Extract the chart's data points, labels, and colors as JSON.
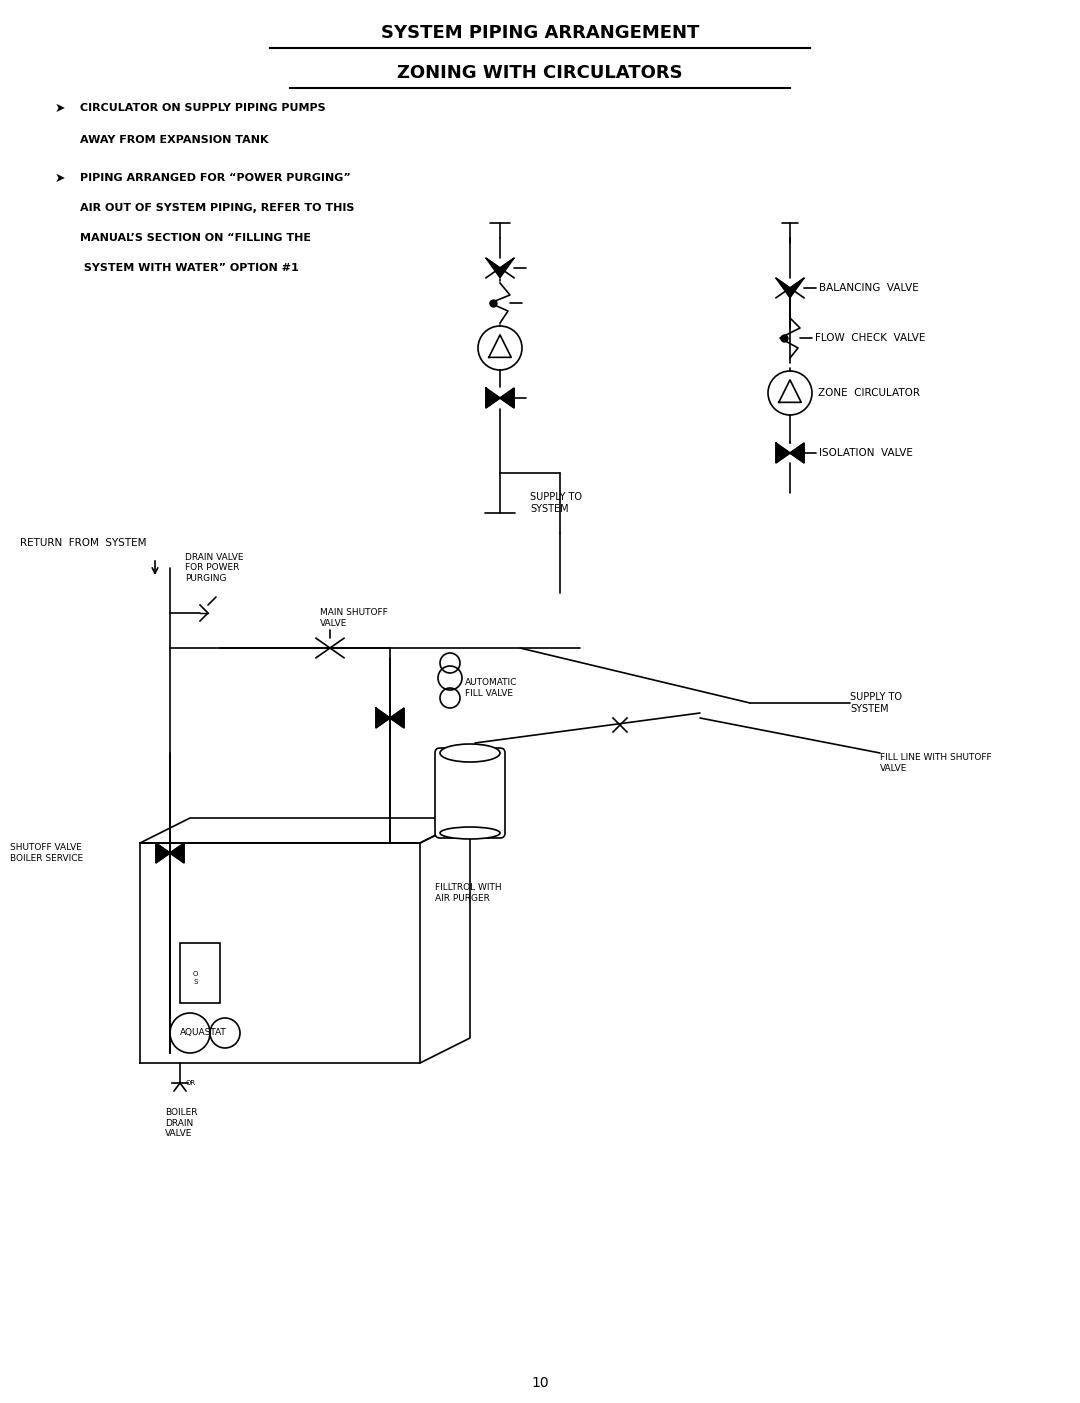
{
  "title_line1": "SYSTEM PIPING ARRANGEMENT",
  "title_line2": "ZONING WITH CIRCULATORS",
  "bullet1_line1": "CIRCULATOR ON SUPPLY PIPING PUMPS",
  "bullet1_line2": "AWAY FROM EXPANSION TANK",
  "bullet2_line1": "PIPING ARRANGED FOR “POWER PURGING”",
  "bullet2_line2": "AIR OUT OF SYSTEM PIPING, REFER TO THIS",
  "bullet2_line3": "MANUAL’S SECTION ON “FILLING THE",
  "bullet2_line4": " SYSTEM WITH WATER” OPTION #1",
  "legend_balancing": "BALANCING  VALVE",
  "legend_flowcheck": "FLOW  CHECK  VALVE",
  "legend_circulator": "ZONE  CIRCULATOR",
  "legend_isolation": "ISOLATION  VALVE",
  "label_return": "RETURN  FROM  SYSTEM",
  "label_drain": "DRAIN VALVE\nFOR POWER\nPURGING",
  "label_shutoff": "MAIN SHUTOFF\nVALVE",
  "label_supply_top": "SUPPLY TO\nSYSTEM",
  "label_auto_fill": "AUTOMATIC\nFILL VALVE",
  "label_supply_bottom": "SUPPLY TO\nSYSTEM",
  "label_shutoff_boiler": "SHUTOFF VALVE\nBOILER SERVICE",
  "label_aquastat": "AQUASTAT",
  "label_boiler_drain": "BOILER\nDRAIN\nVALVE",
  "label_filltrol": "FILLTROL WITH\nAIR PURGER",
  "label_fill_line": "FILL LINE WITH SHUTOFF\nVALVE",
  "page_number": "10",
  "bg_color": "#ffffff",
  "line_color": "#000000",
  "text_color": "#000000",
  "font_size_title": 13,
  "font_size_body": 8,
  "font_size_label": 7
}
